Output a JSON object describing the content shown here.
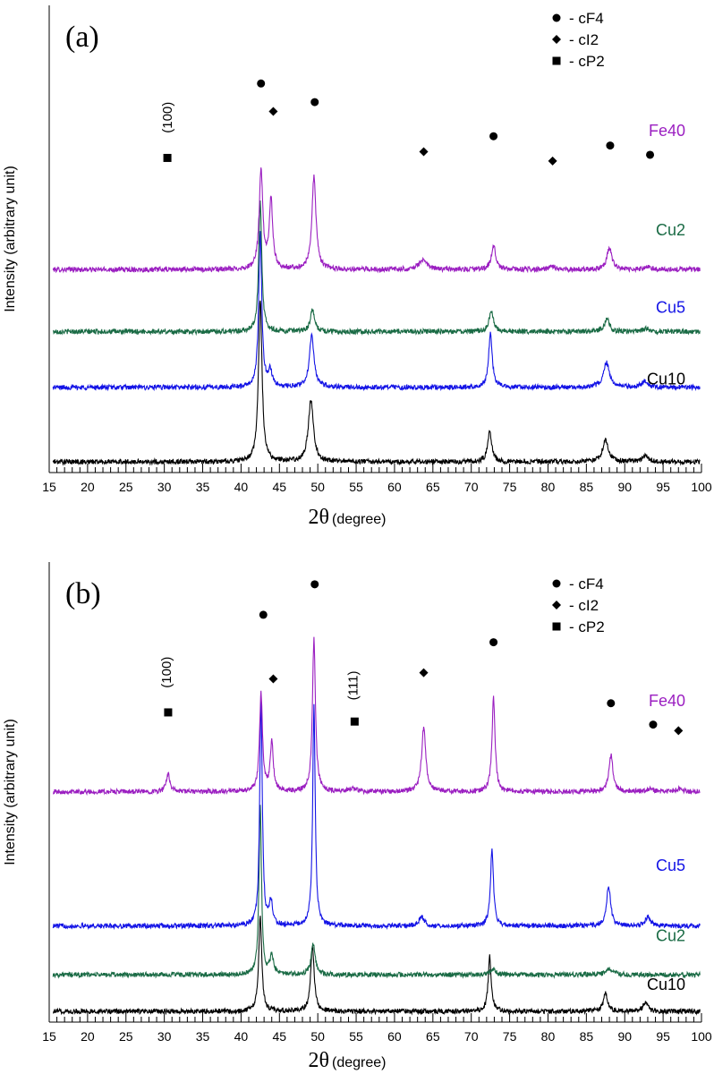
{
  "colors": {
    "Fe40": "#9b1fc1",
    "Cu2": "#1a6b45",
    "Cu5": "#1414e6",
    "Cu10": "#000000"
  },
  "chart_data": [
    {
      "type": "line",
      "panel_label": "(a)",
      "xlabel_symbol": "2θ",
      "xlabel_unit": "(degree)",
      "ylabel": "Intensity (arbitrary unit)",
      "xlim": [
        15,
        100
      ],
      "x_ticks": [
        15,
        20,
        25,
        30,
        35,
        40,
        45,
        50,
        55,
        60,
        65,
        70,
        75,
        80,
        85,
        90,
        95,
        100
      ],
      "legend": [
        {
          "marker": "circle",
          "label": "- cF4"
        },
        {
          "marker": "diamond",
          "label": "- cI2"
        },
        {
          "marker": "square",
          "label": "- cP2"
        }
      ],
      "series": [
        {
          "name": "Fe40",
          "color_key": "Fe40",
          "offset": 0.62,
          "peaks": [
            [
              42.6,
              0.32,
              0.35
            ],
            [
              43.9,
              0.22,
              0.35
            ],
            [
              49.5,
              0.3,
              0.4
            ],
            [
              63.7,
              0.03,
              0.8
            ],
            [
              72.9,
              0.08,
              0.4
            ],
            [
              80.5,
              0.01,
              0.6
            ],
            [
              88.0,
              0.07,
              0.5
            ],
            [
              93.0,
              0.01,
              0.6
            ]
          ]
        },
        {
          "name": "Cu2",
          "color_key": "Cu2",
          "offset": 0.42,
          "peaks": [
            [
              42.5,
              0.42,
              0.3
            ],
            [
              49.3,
              0.07,
              0.4
            ],
            [
              72.6,
              0.07,
              0.4
            ],
            [
              87.7,
              0.04,
              0.5
            ],
            [
              92.8,
              0.01,
              0.6
            ]
          ]
        },
        {
          "name": "Cu5",
          "color_key": "Cu5",
          "offset": 0.24,
          "peaks": [
            [
              42.5,
              0.5,
              0.3
            ],
            [
              43.8,
              0.05,
              0.4
            ],
            [
              49.2,
              0.17,
              0.45
            ],
            [
              72.5,
              0.18,
              0.35
            ],
            [
              87.6,
              0.08,
              0.6
            ],
            [
              92.6,
              0.02,
              0.6
            ]
          ]
        },
        {
          "name": "Cu10",
          "color_key": "Cu10",
          "offset": 0.0,
          "peaks": [
            [
              42.5,
              0.52,
              0.35
            ],
            [
              49.1,
              0.2,
              0.5
            ],
            [
              72.4,
              0.1,
              0.4
            ],
            [
              87.5,
              0.07,
              0.6
            ],
            [
              92.7,
              0.02,
              0.6
            ]
          ]
        }
      ],
      "markers": [
        {
          "shape": "circle",
          "x": 42.6,
          "y": 1.22
        },
        {
          "shape": "diamond",
          "x": 44.2,
          "y": 1.13
        },
        {
          "shape": "circle",
          "x": 49.6,
          "y": 1.16
        },
        {
          "shape": "square",
          "x": 30.4,
          "y": 0.98
        },
        {
          "shape": "diamond",
          "x": 63.8,
          "y": 1.0
        },
        {
          "shape": "circle",
          "x": 72.9,
          "y": 1.05
        },
        {
          "shape": "diamond",
          "x": 80.6,
          "y": 0.97
        },
        {
          "shape": "circle",
          "x": 88.1,
          "y": 1.02
        },
        {
          "shape": "circle",
          "x": 93.3,
          "y": 0.99
        }
      ],
      "peak_labels": [
        {
          "text": "(100)",
          "x": 30.4,
          "y": 1.06
        }
      ],
      "label_y": [
        1.05,
        0.73,
        0.48,
        0.25
      ]
    },
    {
      "type": "line",
      "panel_label": "(b)",
      "xlabel_symbol": "2θ",
      "xlabel_unit": "(degree)",
      "ylabel": "Intensity (arbitrary unit)",
      "xlim": [
        15,
        100
      ],
      "x_ticks": [
        15,
        20,
        25,
        30,
        35,
        40,
        45,
        50,
        55,
        60,
        65,
        70,
        75,
        80,
        85,
        90,
        95,
        100
      ],
      "legend": [
        {
          "marker": "circle",
          "label": "- cF4"
        },
        {
          "marker": "diamond",
          "label": "- cI2"
        },
        {
          "marker": "square",
          "label": "- cP2"
        }
      ],
      "series": [
        {
          "name": "Fe40",
          "color_key": "Fe40",
          "offset": 0.72,
          "peaks": [
            [
              30.5,
              0.06,
              0.35
            ],
            [
              42.6,
              0.32,
              0.3
            ],
            [
              44.0,
              0.16,
              0.3
            ],
            [
              49.5,
              0.5,
              0.3
            ],
            [
              54.6,
              0.01,
              0.6
            ],
            [
              63.8,
              0.21,
              0.4
            ],
            [
              72.9,
              0.31,
              0.3
            ],
            [
              88.2,
              0.12,
              0.4
            ],
            [
              93.3,
              0.01,
              0.6
            ],
            [
              97.0,
              0.01,
              0.6
            ]
          ]
        },
        {
          "name": "Cu5",
          "color_key": "Cu5",
          "offset": 0.28,
          "peaks": [
            [
              42.6,
              0.75,
              0.25
            ],
            [
              43.9,
              0.08,
              0.3
            ],
            [
              49.5,
              0.72,
              0.25
            ],
            [
              63.5,
              0.03,
              0.5
            ],
            [
              72.7,
              0.25,
              0.3
            ],
            [
              87.9,
              0.13,
              0.4
            ],
            [
              93.0,
              0.03,
              0.5
            ]
          ]
        },
        {
          "name": "Cu2",
          "color_key": "Cu2",
          "offset": 0.12,
          "peaks": [
            [
              42.5,
              0.55,
              0.25
            ],
            [
              44.0,
              0.06,
              0.35
            ],
            [
              49.4,
              0.1,
              0.4
            ],
            [
              72.8,
              0.02,
              0.5
            ],
            [
              88.0,
              0.02,
              0.6
            ]
          ]
        },
        {
          "name": "Cu10",
          "color_key": "Cu10",
          "offset": 0.0,
          "peaks": [
            [
              42.5,
              0.31,
              0.3
            ],
            [
              49.3,
              0.21,
              0.35
            ],
            [
              72.4,
              0.18,
              0.3
            ],
            [
              87.5,
              0.06,
              0.4
            ],
            [
              92.7,
              0.03,
              0.45
            ]
          ]
        }
      ],
      "markers": [
        {
          "shape": "circle",
          "x": 42.9,
          "y": 1.3
        },
        {
          "shape": "circle",
          "x": 49.6,
          "y": 1.4
        },
        {
          "shape": "diamond",
          "x": 44.2,
          "y": 1.09
        },
        {
          "shape": "square",
          "x": 30.5,
          "y": 0.98
        },
        {
          "shape": "square",
          "x": 54.8,
          "y": 0.95
        },
        {
          "shape": "diamond",
          "x": 63.8,
          "y": 1.11
        },
        {
          "shape": "circle",
          "x": 72.9,
          "y": 1.21
        },
        {
          "shape": "circle",
          "x": 88.2,
          "y": 1.01
        },
        {
          "shape": "circle",
          "x": 93.7,
          "y": 0.94
        },
        {
          "shape": "diamond",
          "x": 97.0,
          "y": 0.92
        }
      ],
      "peak_labels": [
        {
          "text": "(100)",
          "x": 30.3,
          "y": 1.06
        },
        {
          "text": "(111)",
          "x": 54.6,
          "y": 1.02
        }
      ],
      "label_y": [
        1.0,
        0.46,
        0.23,
        0.07
      ]
    }
  ]
}
